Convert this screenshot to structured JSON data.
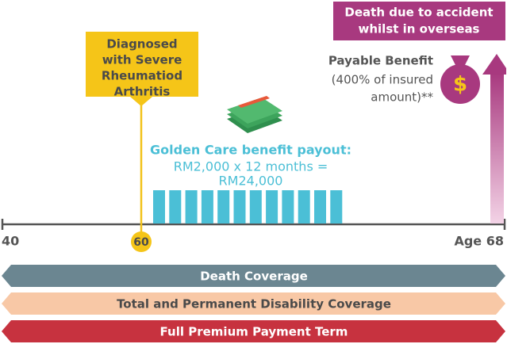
{
  "diagnosis_callout": {
    "lines": [
      "Diagnosed",
      "with Severe",
      "Rheumatiod",
      "Arthritis"
    ]
  },
  "accident_box": {
    "lines": [
      "Death due to accident",
      "whilst in overseas"
    ]
  },
  "payable_benefit": {
    "title": "Payable Benefit",
    "lines": [
      "(400% of insured",
      "amount)**"
    ]
  },
  "payout": {
    "title": "Golden Care benefit payout:",
    "lines": [
      "RM2,000 x 12 months =",
      "RM24,000"
    ]
  },
  "timeline": {
    "start_label": "40",
    "event_label": "60",
    "end_label": "Age 68"
  },
  "coverage_bars": [
    "Death Coverage",
    "Total and Permanent Disability Coverage",
    "Full Premium Payment Term"
  ]
}
